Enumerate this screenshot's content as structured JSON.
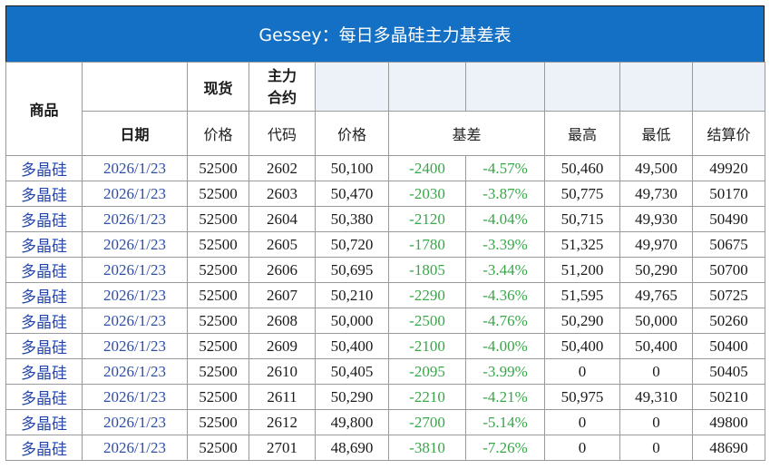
{
  "title": "Gessey：每日多晶硅主力基差表",
  "headers": {
    "product": "商品",
    "spot": "现货",
    "main_contract": "主力\n合约",
    "date": "日期",
    "price": "价格",
    "code": "代码",
    "futures_price": "价格",
    "basis": "基差",
    "high": "最高",
    "low": "最低",
    "settle": "结算价"
  },
  "rows": [
    {
      "product": "多晶硅",
      "date": "2026/1/23",
      "spot": "52500",
      "code": "2602",
      "price": "50,100",
      "basis": "-2400",
      "basis_pct": "-4.57%",
      "high": "50,460",
      "low": "49,500",
      "settle": "49920"
    },
    {
      "product": "多晶硅",
      "date": "2026/1/23",
      "spot": "52500",
      "code": "2603",
      "price": "50,470",
      "basis": "-2030",
      "basis_pct": "-3.87%",
      "high": "50,775",
      "low": "49,730",
      "settle": "50170"
    },
    {
      "product": "多晶硅",
      "date": "2026/1/23",
      "spot": "52500",
      "code": "2604",
      "price": "50,380",
      "basis": "-2120",
      "basis_pct": "-4.04%",
      "high": "50,715",
      "low": "49,930",
      "settle": "50490"
    },
    {
      "product": "多晶硅",
      "date": "2026/1/23",
      "spot": "52500",
      "code": "2605",
      "price": "50,720",
      "basis": "-1780",
      "basis_pct": "-3.39%",
      "high": "51,325",
      "low": "49,970",
      "settle": "50675"
    },
    {
      "product": "多晶硅",
      "date": "2026/1/23",
      "spot": "52500",
      "code": "2606",
      "price": "50,695",
      "basis": "-1805",
      "basis_pct": "-3.44%",
      "high": "51,200",
      "low": "50,290",
      "settle": "50700"
    },
    {
      "product": "多晶硅",
      "date": "2026/1/23",
      "spot": "52500",
      "code": "2607",
      "price": "50,210",
      "basis": "-2290",
      "basis_pct": "-4.36%",
      "high": "51,595",
      "low": "49,765",
      "settle": "50725"
    },
    {
      "product": "多晶硅",
      "date": "2026/1/23",
      "spot": "52500",
      "code": "2608",
      "price": "50,000",
      "basis": "-2500",
      "basis_pct": "-4.76%",
      "high": "50,290",
      "low": "50,000",
      "settle": "50260"
    },
    {
      "product": "多晶硅",
      "date": "2026/1/23",
      "spot": "52500",
      "code": "2609",
      "price": "50,400",
      "basis": "-2100",
      "basis_pct": "-4.00%",
      "high": "50,400",
      "low": "50,400",
      "settle": "50400"
    },
    {
      "product": "多晶硅",
      "date": "2026/1/23",
      "spot": "52500",
      "code": "2610",
      "price": "50,405",
      "basis": "-2095",
      "basis_pct": "-3.99%",
      "high": "0",
      "low": "0",
      "settle": "50405"
    },
    {
      "product": "多晶硅",
      "date": "2026/1/23",
      "spot": "52500",
      "code": "2611",
      "price": "50,290",
      "basis": "-2210",
      "basis_pct": "-4.21%",
      "high": "50,975",
      "low": "49,310",
      "settle": "50210"
    },
    {
      "product": "多晶硅",
      "date": "2026/1/23",
      "spot": "52500",
      "code": "2612",
      "price": "49,800",
      "basis": "-2700",
      "basis_pct": "-5.14%",
      "high": "0",
      "low": "0",
      "settle": "49800"
    },
    {
      "product": "多晶硅",
      "date": "2026/1/23",
      "spot": "52500",
      "code": "2701",
      "price": "48,690",
      "basis": "-3810",
      "basis_pct": "-7.26%",
      "high": "0",
      "low": "0",
      "settle": "48690"
    }
  ],
  "colors": {
    "title_bg": "#1470c4",
    "basis_text": "#3aa64a",
    "link_text": "#2545a8",
    "header_fill": "#edf2f8"
  }
}
